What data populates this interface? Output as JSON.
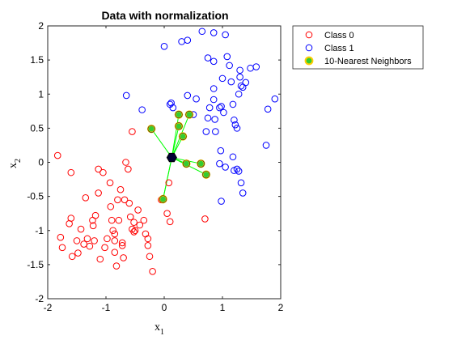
{
  "chart_data": {
    "type": "scatter",
    "title": "Data with normalization",
    "xlabel": "x",
    "xlabel_sub": "1",
    "ylabel": "x",
    "ylabel_sub": "2",
    "xlim": [
      -2,
      2
    ],
    "ylim": [
      -2,
      2
    ],
    "xticks": [
      "-2",
      "-1",
      "0",
      "1",
      "2"
    ],
    "yticks": [
      "-2",
      "-1.5",
      "-1",
      "-0.5",
      "0",
      "0.5",
      "1",
      "1.5",
      "2"
    ],
    "grid": false,
    "legend_position": "top-right (outside)",
    "series": [
      {
        "name": "Class 0",
        "color": "#ff0000",
        "marker": "open-circle",
        "points": [
          [
            -1.83,
            0.1
          ],
          [
            -1.6,
            -0.15
          ],
          [
            -1.78,
            -1.1
          ],
          [
            -1.75,
            -1.25
          ],
          [
            -1.63,
            -0.9
          ],
          [
            -1.6,
            -0.82
          ],
          [
            -1.58,
            -1.38
          ],
          [
            -1.5,
            -1.15
          ],
          [
            -1.48,
            -1.33
          ],
          [
            -1.43,
            -0.98
          ],
          [
            -1.38,
            -1.2
          ],
          [
            -1.35,
            -0.52
          ],
          [
            -1.32,
            -1.12
          ],
          [
            -1.28,
            -1.23
          ],
          [
            -1.23,
            -0.85
          ],
          [
            -1.22,
            -0.93
          ],
          [
            -1.2,
            -1.15
          ],
          [
            -1.18,
            -0.78
          ],
          [
            -1.13,
            -0.45
          ],
          [
            -1.13,
            -0.1
          ],
          [
            -1.1,
            -1.42
          ],
          [
            -1.05,
            -0.15
          ],
          [
            -1.02,
            -1.25
          ],
          [
            -0.98,
            -1.12
          ],
          [
            -0.93,
            -0.3
          ],
          [
            -0.92,
            -0.65
          ],
          [
            -0.9,
            -0.85
          ],
          [
            -0.88,
            -1.0
          ],
          [
            -0.85,
            -1.05
          ],
          [
            -0.85,
            -1.15
          ],
          [
            -0.85,
            -1.32
          ],
          [
            -0.82,
            -1.52
          ],
          [
            -0.8,
            -0.55
          ],
          [
            -0.78,
            -0.85
          ],
          [
            -0.75,
            -0.4
          ],
          [
            -0.72,
            -1.22
          ],
          [
            -0.72,
            -1.18
          ],
          [
            -0.7,
            -1.4
          ],
          [
            -0.68,
            -0.55
          ],
          [
            -0.66,
            0.0
          ],
          [
            -0.62,
            -0.1
          ],
          [
            -0.6,
            -0.6
          ],
          [
            -0.58,
            -0.8
          ],
          [
            -0.55,
            -0.98
          ],
          [
            -0.52,
            -0.88
          ],
          [
            -0.52,
            -1.02
          ],
          [
            -0.5,
            -1.0
          ],
          [
            -0.45,
            -0.7
          ],
          [
            -0.42,
            -0.92
          ],
          [
            -0.35,
            -0.85
          ],
          [
            -0.32,
            -1.05
          ],
          [
            -0.28,
            -1.12
          ],
          [
            -0.28,
            -1.22
          ],
          [
            -0.25,
            -1.38
          ],
          [
            -0.2,
            -1.6
          ],
          [
            -0.05,
            -0.55
          ],
          [
            0.05,
            -0.75
          ],
          [
            0.1,
            -0.87
          ],
          [
            0.7,
            -0.83
          ],
          [
            -0.55,
            0.45
          ],
          [
            0.08,
            -0.3
          ]
        ]
      },
      {
        "name": "Class 1",
        "color": "#0000ff",
        "marker": "open-circle",
        "points": [
          [
            -0.65,
            0.98
          ],
          [
            -0.38,
            0.77
          ],
          [
            0.0,
            1.7
          ],
          [
            0.1,
            0.85
          ],
          [
            0.12,
            0.87
          ],
          [
            0.15,
            0.8
          ],
          [
            0.3,
            1.77
          ],
          [
            0.4,
            0.98
          ],
          [
            0.4,
            1.79
          ],
          [
            0.5,
            0.7
          ],
          [
            0.55,
            0.93
          ],
          [
            0.65,
            1.92
          ],
          [
            0.75,
            1.53
          ],
          [
            0.75,
            0.65
          ],
          [
            0.85,
            0.92
          ],
          [
            0.85,
            1.48
          ],
          [
            0.85,
            1.08
          ],
          [
            0.85,
            1.9
          ],
          [
            0.87,
            0.63
          ],
          [
            0.88,
            0.45
          ],
          [
            0.95,
            0.8
          ],
          [
            0.98,
            0.82
          ],
          [
            1.0,
            1.23
          ],
          [
            1.02,
            0.73
          ],
          [
            1.05,
            1.87
          ],
          [
            1.08,
            1.55
          ],
          [
            1.12,
            1.42
          ],
          [
            1.15,
            1.18
          ],
          [
            1.18,
            0.85
          ],
          [
            1.2,
            0.62
          ],
          [
            1.22,
            0.55
          ],
          [
            1.25,
            0.5
          ],
          [
            1.28,
            1.0
          ],
          [
            1.3,
            1.35
          ],
          [
            1.3,
            1.25
          ],
          [
            1.32,
            1.12
          ],
          [
            1.35,
            1.1
          ],
          [
            1.4,
            1.17
          ],
          [
            1.48,
            1.38
          ],
          [
            1.58,
            1.4
          ],
          [
            1.78,
            0.78
          ],
          [
            1.9,
            0.93
          ],
          [
            1.75,
            0.25
          ],
          [
            0.78,
            0.8
          ],
          [
            0.72,
            0.45
          ],
          [
            0.97,
            0.17
          ],
          [
            0.95,
            -0.02
          ],
          [
            1.05,
            -0.07
          ],
          [
            1.2,
            -0.12
          ],
          [
            1.25,
            -0.1
          ],
          [
            1.28,
            -0.13
          ],
          [
            1.32,
            -0.3
          ],
          [
            1.35,
            -0.45
          ],
          [
            0.98,
            -0.57
          ],
          [
            1.18,
            0.08
          ]
        ]
      },
      {
        "name": "10-Nearest Neighbors",
        "marker": "filled-circle",
        "fill_color": "#33cc33",
        "edge_color": "#ffcc00",
        "points": [
          [
            -0.22,
            0.49
          ],
          [
            0.25,
            0.7
          ],
          [
            0.43,
            0.7
          ],
          [
            0.25,
            0.53
          ],
          [
            0.32,
            0.38
          ],
          [
            0.38,
            -0.02
          ],
          [
            0.63,
            -0.02
          ],
          [
            0.72,
            -0.18
          ],
          [
            -0.02,
            -0.54
          ],
          [
            -0.02,
            -0.54
          ]
        ]
      }
    ],
    "query_point": {
      "x": 0.13,
      "y": 0.07,
      "color": "#000033",
      "marker": "filled-hexagon"
    },
    "connector_color": "#00ff00"
  }
}
